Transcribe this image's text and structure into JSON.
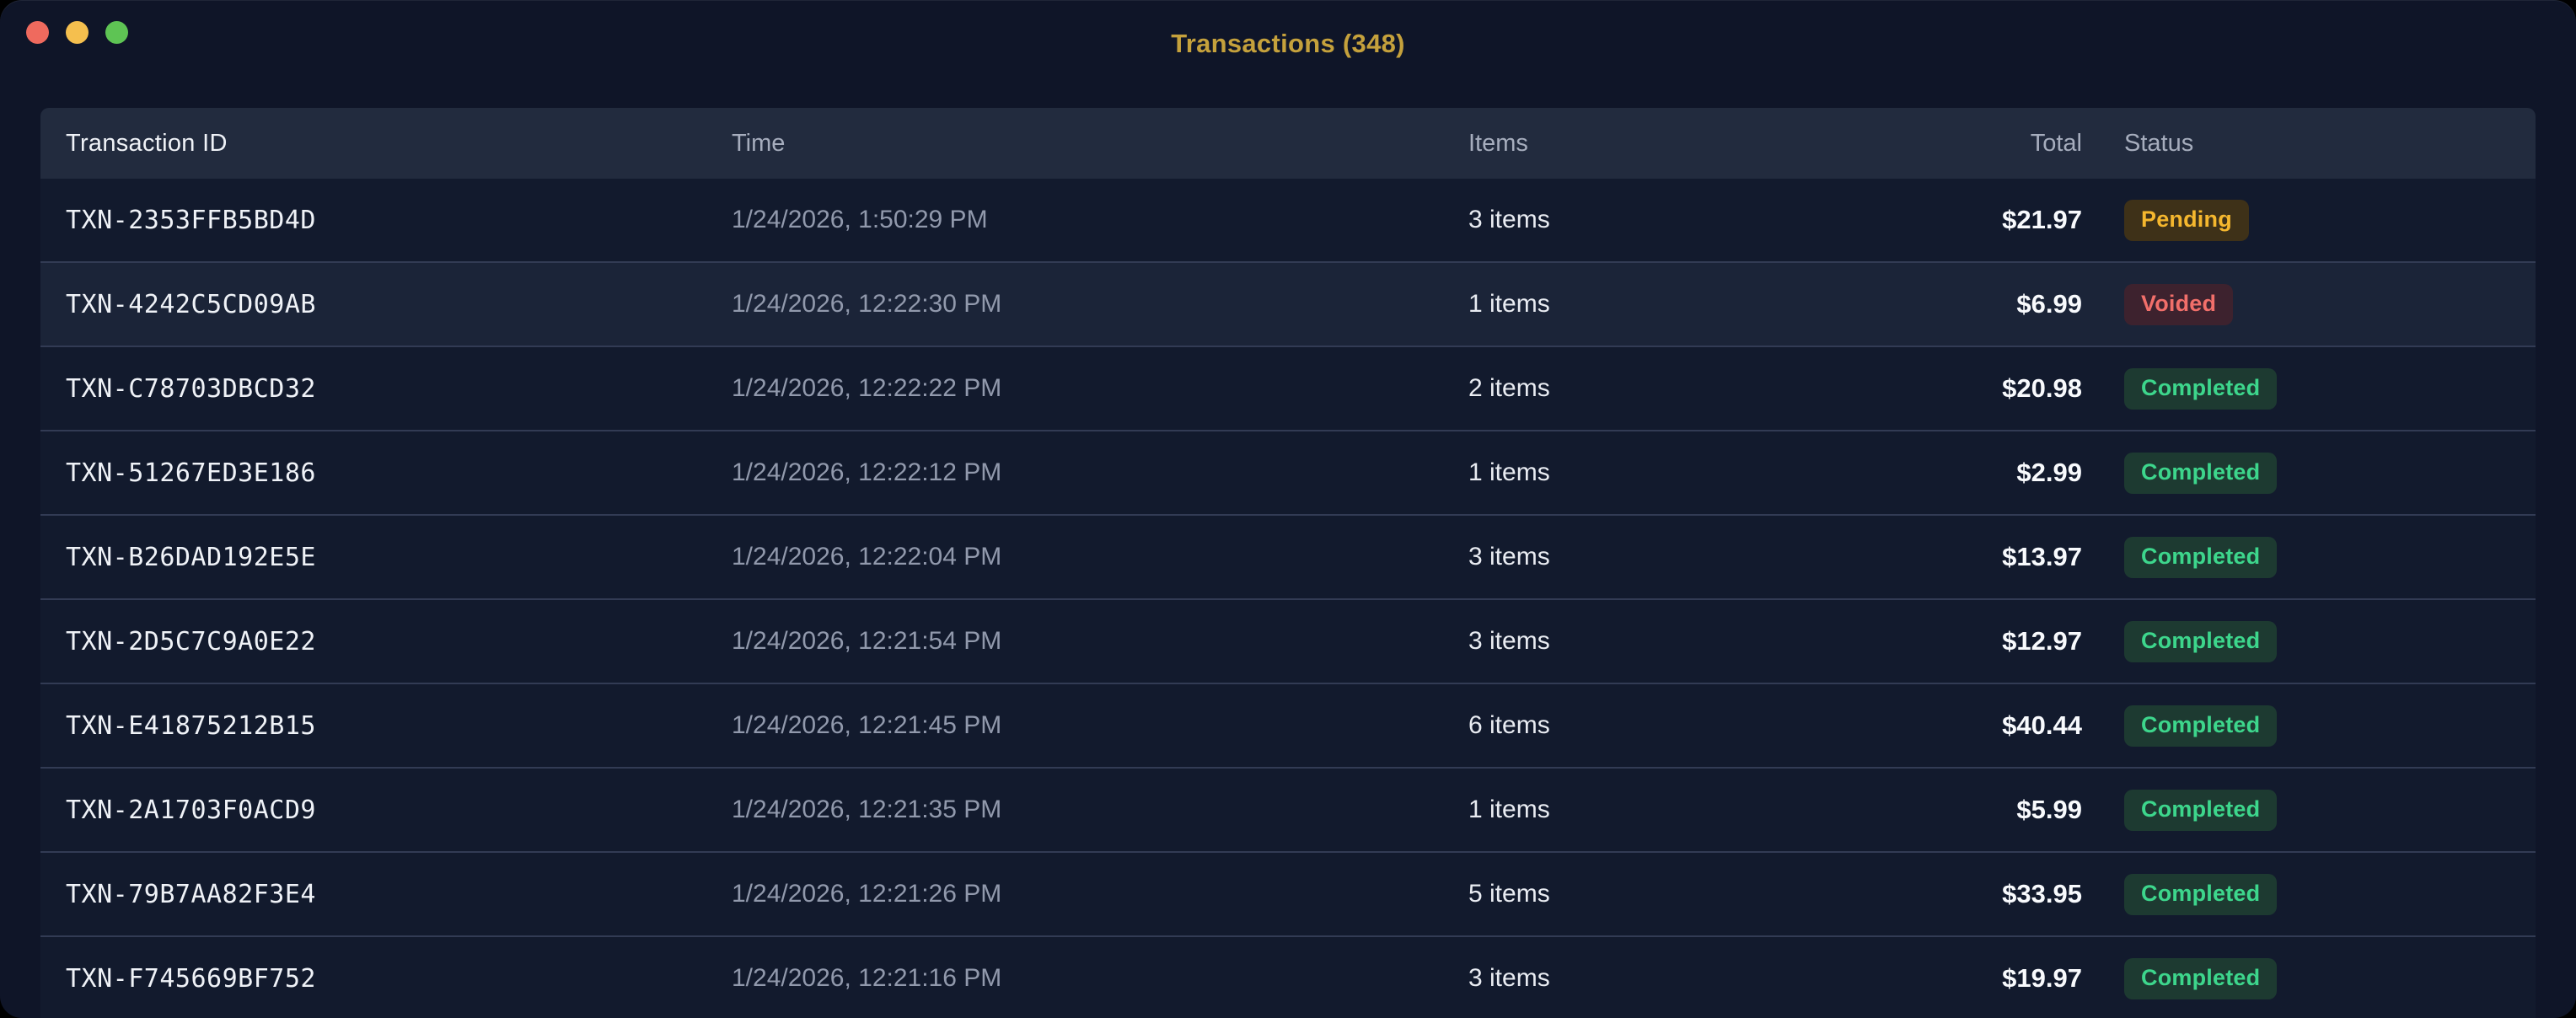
{
  "window": {
    "title": "Transactions (348)",
    "title_color": "#c5a13c",
    "traffic_lights": [
      {
        "name": "close-button",
        "color": "#ef6a5e"
      },
      {
        "name": "minimize-button",
        "color": "#f5bf4e"
      },
      {
        "name": "zoom-button",
        "color": "#5ec454"
      }
    ]
  },
  "table": {
    "columns": [
      {
        "key": "id",
        "label": "Transaction ID"
      },
      {
        "key": "time",
        "label": "Time"
      },
      {
        "key": "items",
        "label": "Items"
      },
      {
        "key": "total",
        "label": "Total"
      },
      {
        "key": "status",
        "label": "Status"
      }
    ],
    "status_styles": {
      "Pending": {
        "bg": "#3e3118",
        "fg": "#f5b72e"
      },
      "Voided": {
        "bg": "#3d222e",
        "fg": "#f16f6a"
      },
      "Completed": {
        "bg": "#1d3a31",
        "fg": "#3dd68c"
      }
    },
    "rows": [
      {
        "id": "TXN-2353FFB5BD4D",
        "time": "1/24/2026, 1:50:29 PM",
        "items": "3 items",
        "total": "$21.97",
        "status": "Pending",
        "highlighted": false
      },
      {
        "id": "TXN-4242C5CD09AB",
        "time": "1/24/2026, 12:22:30 PM",
        "items": "1 items",
        "total": "$6.99",
        "status": "Voided",
        "highlighted": true
      },
      {
        "id": "TXN-C78703DBCD32",
        "time": "1/24/2026, 12:22:22 PM",
        "items": "2 items",
        "total": "$20.98",
        "status": "Completed",
        "highlighted": false
      },
      {
        "id": "TXN-51267ED3E186",
        "time": "1/24/2026, 12:22:12 PM",
        "items": "1 items",
        "total": "$2.99",
        "status": "Completed",
        "highlighted": false
      },
      {
        "id": "TXN-B26DAD192E5E",
        "time": "1/24/2026, 12:22:04 PM",
        "items": "3 items",
        "total": "$13.97",
        "status": "Completed",
        "highlighted": false
      },
      {
        "id": "TXN-2D5C7C9A0E22",
        "time": "1/24/2026, 12:21:54 PM",
        "items": "3 items",
        "total": "$12.97",
        "status": "Completed",
        "highlighted": false
      },
      {
        "id": "TXN-E41875212B15",
        "time": "1/24/2026, 12:21:45 PM",
        "items": "6 items",
        "total": "$40.44",
        "status": "Completed",
        "highlighted": false
      },
      {
        "id": "TXN-2A1703F0ACD9",
        "time": "1/24/2026, 12:21:35 PM",
        "items": "1 items",
        "total": "$5.99",
        "status": "Completed",
        "highlighted": false
      },
      {
        "id": "TXN-79B7AA82F3E4",
        "time": "1/24/2026, 12:21:26 PM",
        "items": "5 items",
        "total": "$33.95",
        "status": "Completed",
        "highlighted": false
      },
      {
        "id": "TXN-F745669BF752",
        "time": "1/24/2026, 12:21:16 PM",
        "items": "3 items",
        "total": "$19.97",
        "status": "Completed",
        "highlighted": false
      }
    ]
  }
}
